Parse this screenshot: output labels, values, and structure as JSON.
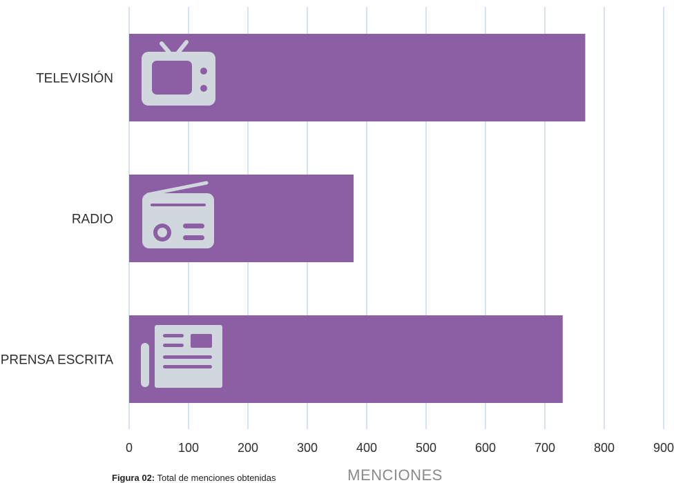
{
  "chart_data": {
    "type": "bar",
    "orientation": "horizontal",
    "categories": [
      "TELEVISIÓN",
      "RADIO",
      "PRENSA ESCRITA"
    ],
    "values": [
      768,
      378,
      730
    ],
    "icons": [
      "tv-icon",
      "radio-icon",
      "newspaper-icon"
    ],
    "xlabel": "MENCIONES",
    "xlim": [
      0,
      900
    ],
    "xticks": [
      0,
      100,
      200,
      300,
      400,
      500,
      600,
      700,
      800,
      900
    ],
    "grid": "vertical",
    "bar_color": "#8c5fa5",
    "icon_color": "#d0d7dd",
    "grid_color": "#c9d9ea"
  },
  "caption": {
    "label": "Figura 02:",
    "text": " Total de menciones obtenidas"
  }
}
